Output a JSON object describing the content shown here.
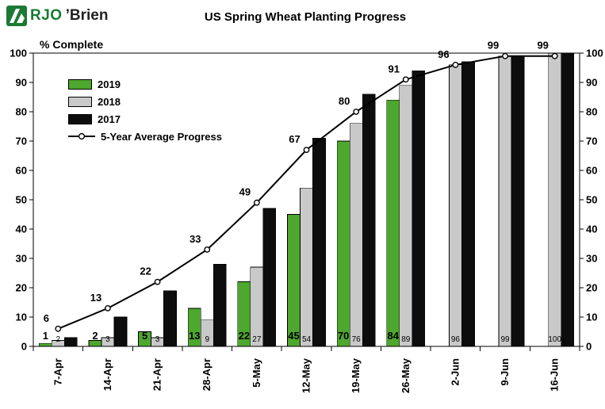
{
  "logo": {
    "primary": "RJO",
    "secondary": "’Brien"
  },
  "chart_data": {
    "type": "bar",
    "title": "US Spring Wheat Planting Progress",
    "ylabel": "% Complete",
    "ylim": [
      0,
      100
    ],
    "ytick_step": 10,
    "grid": false,
    "legend_position": "upper-left-inside",
    "categories": [
      "7-Apr",
      "14-Apr",
      "21-Apr",
      "28-Apr",
      "5-May",
      "12-May",
      "19-May",
      "26-May",
      "2-Jun",
      "9-Jun",
      "16-Jun"
    ],
    "series": [
      {
        "name": "2019",
        "type": "bar",
        "color": "#4EA72E",
        "show_labels": true,
        "values": [
          1,
          2,
          5,
          13,
          22,
          45,
          70,
          84,
          null,
          null,
          null
        ]
      },
      {
        "name": "2018",
        "type": "bar",
        "color": "#C9C9C9",
        "show_labels": true,
        "values": [
          2,
          3,
          3,
          9,
          27,
          54,
          76,
          89,
          96,
          99,
          100
        ]
      },
      {
        "name": "2017",
        "type": "bar",
        "color": "#0D0D0D",
        "show_labels": false,
        "values": [
          3,
          10,
          19,
          28,
          47,
          71,
          86,
          94,
          97,
          99,
          100
        ]
      },
      {
        "name": "5-Year Average Progress",
        "type": "line",
        "color": "#000000",
        "show_labels": true,
        "marker": "circle-white",
        "values": [
          6,
          13,
          22,
          33,
          49,
          67,
          80,
          91,
          96,
          99,
          99
        ]
      }
    ]
  }
}
